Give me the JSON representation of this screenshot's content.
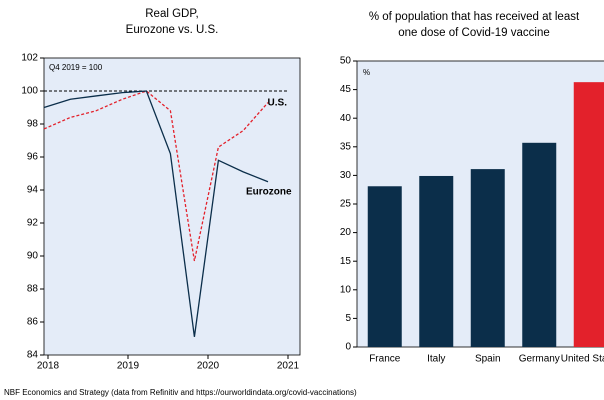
{
  "chart_data": [
    {
      "type": "line",
      "title": [
        "Real GDP,",
        "Eurozone vs. U.S."
      ],
      "annotation": "Q4 2019 = 100",
      "reference_line": 100,
      "xlim": [
        2017.95,
        2021.15
      ],
      "xticks": [
        2018,
        2019,
        2020,
        2021
      ],
      "ylim": [
        84,
        102
      ],
      "yticks": [
        84,
        86,
        88,
        90,
        92,
        94,
        96,
        98,
        100,
        102
      ],
      "x": [
        2017.95,
        2018.28,
        2018.6,
        2018.93,
        2019.23,
        2019.53,
        2019.83,
        2020.13,
        2020.44,
        2020.75
      ],
      "series": [
        {
          "name": "U.S.",
          "color": "#e3212b",
          "style": "dashed",
          "values": [
            97.7,
            98.4,
            98.8,
            99.5,
            100.0,
            98.8,
            89.7,
            96.6,
            97.6,
            99.3
          ]
        },
        {
          "name": "Eurozone",
          "color": "#0b2e4a",
          "style": "solid",
          "values": [
            99.0,
            99.5,
            99.7,
            99.9,
            100.0,
            96.2,
            85.1,
            95.8,
            95.1,
            94.5
          ]
        }
      ]
    },
    {
      "type": "bar",
      "title": [
        "% of population that has received at least",
        "one dose of Covid-19 vaccine"
      ],
      "y_label": "%",
      "ylim": [
        0,
        50
      ],
      "yticks": [
        0,
        5,
        10,
        15,
        20,
        25,
        30,
        35,
        40,
        45,
        50
      ],
      "categories": [
        "France",
        "Italy",
        "Spain",
        "Germany",
        "United States"
      ],
      "values": [
        28.1,
        29.9,
        31.1,
        35.7,
        46.3
      ],
      "colors": [
        "#0b2e4a",
        "#0b2e4a",
        "#0b2e4a",
        "#0b2e4a",
        "#e3212b"
      ]
    }
  ],
  "source": "NBF Economics and Strategy (data from Refinitiv and https://ourworldindata.org/covid-vaccinations)"
}
